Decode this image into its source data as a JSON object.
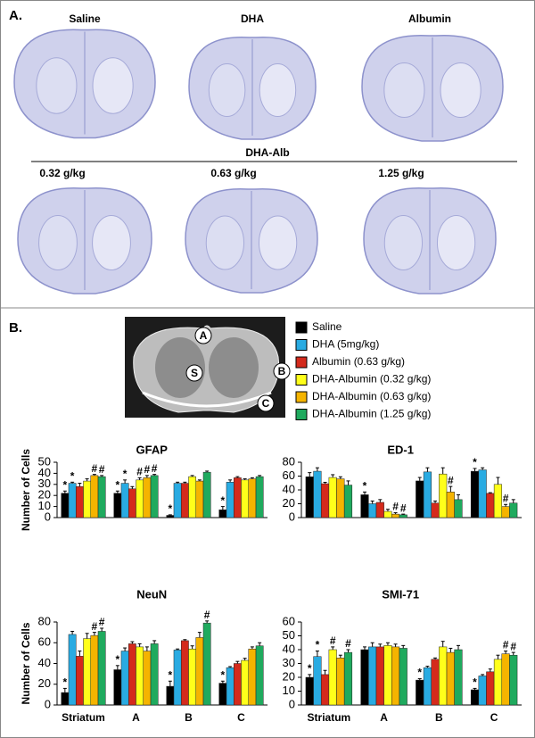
{
  "panel_a": {
    "label": "A.",
    "columns": [
      "Saline",
      "DHA",
      "Albumin"
    ],
    "group_label": "DHA-Alb",
    "doses": [
      "0.32 g/kg",
      "0.63 g/kg",
      "1.25 g/kg"
    ]
  },
  "panel_b": {
    "label": "B.",
    "inset_labels": [
      "A",
      "S",
      "B",
      "C"
    ],
    "legend": [
      {
        "name": "Saline",
        "color": "#000000"
      },
      {
        "name": "DHA (5mg/kg)",
        "color": "#29abe2"
      },
      {
        "name": "Albumin (0.63 g/kg)",
        "color": "#d42a1c"
      },
      {
        "name": "DHA-Albumin (0.32 g/kg)",
        "color": "#ffff1a"
      },
      {
        "name": "DHA-Albumin (0.63 g/kg)",
        "color": "#f5b400"
      },
      {
        "name": "DHA-Albumin (1.25 g/kg)",
        "color": "#1faa5e"
      }
    ]
  },
  "chart_data": [
    {
      "type": "bar",
      "title": "GFAP",
      "ylabel": "Number of Cells",
      "categories": [
        null,
        null,
        null,
        null
      ],
      "ylim": [
        0,
        50
      ],
      "yticks": [
        0,
        10,
        20,
        30,
        40,
        50
      ],
      "series": [
        {
          "values": [
            22,
            22,
            2,
            7
          ],
          "errors": [
            2,
            2,
            0.5,
            3
          ],
          "flags": [
            "*",
            "*",
            "*",
            "*"
          ]
        },
        {
          "values": [
            31,
            31,
            31,
            32
          ],
          "errors": [
            1,
            3,
            1,
            2
          ],
          "flags": [
            "*",
            "*",
            null,
            null
          ]
        },
        {
          "values": [
            28,
            26,
            31,
            36
          ],
          "errors": [
            3,
            2,
            1,
            1
          ],
          "flags": [
            null,
            null,
            null,
            null
          ]
        },
        {
          "values": [
            33,
            34,
            37,
            34
          ],
          "errors": [
            2,
            2,
            1,
            1
          ],
          "flags": [
            null,
            "#",
            null,
            null
          ]
        },
        {
          "values": [
            38,
            36,
            33,
            35
          ],
          "errors": [
            1,
            2,
            1,
            1
          ],
          "flags": [
            "#",
            "#",
            null,
            null
          ]
        },
        {
          "values": [
            37,
            38,
            41,
            37
          ],
          "errors": [
            1,
            1,
            1,
            1
          ],
          "flags": [
            "#",
            "#",
            null,
            null
          ]
        }
      ]
    },
    {
      "type": "bar",
      "title": "ED-1",
      "categories": [
        null,
        null,
        null,
        null
      ],
      "ylim": [
        0,
        80
      ],
      "yticks": [
        0,
        20,
        40,
        60,
        80
      ],
      "series": [
        {
          "values": [
            59,
            33,
            53,
            67
          ],
          "errors": [
            6,
            4,
            5,
            4
          ],
          "flags": [
            null,
            "*",
            null,
            "*"
          ]
        },
        {
          "values": [
            67,
            20,
            66,
            69
          ],
          "errors": [
            5,
            4,
            6,
            3
          ],
          "flags": [
            null,
            null,
            null,
            null
          ]
        },
        {
          "values": [
            49,
            22,
            21,
            35
          ],
          "errors": [
            2,
            4,
            3,
            1
          ],
          "flags": [
            null,
            null,
            null,
            null
          ]
        },
        {
          "values": [
            58,
            9,
            63,
            48
          ],
          "errors": [
            4,
            3,
            9,
            10
          ],
          "flags": [
            null,
            null,
            null,
            null
          ]
        },
        {
          "values": [
            56,
            5,
            37,
            16
          ],
          "errors": [
            3,
            2,
            8,
            3
          ],
          "flags": [
            null,
            "#",
            "#",
            "#"
          ]
        },
        {
          "values": [
            47,
            4,
            26,
            21
          ],
          "errors": [
            6,
            1,
            7,
            5
          ],
          "flags": [
            null,
            "#",
            null,
            null
          ]
        }
      ]
    },
    {
      "type": "bar",
      "title": "NeuN",
      "ylabel": "Number of Cells",
      "categories": [
        "Striatum",
        "A",
        "B",
        "C"
      ],
      "ylim": [
        0,
        80
      ],
      "yticks": [
        0,
        20,
        40,
        60,
        80
      ],
      "series": [
        {
          "values": [
            12,
            34,
            18,
            21
          ],
          "errors": [
            4,
            4,
            5,
            2
          ],
          "flags": [
            "*",
            "*",
            "*",
            "*"
          ]
        },
        {
          "values": [
            68,
            52,
            53,
            36
          ],
          "errors": [
            3,
            3,
            1,
            1
          ],
          "flags": [
            null,
            null,
            null,
            null
          ]
        },
        {
          "values": [
            47,
            59,
            62,
            40
          ],
          "errors": [
            5,
            2,
            1,
            2
          ],
          "flags": [
            null,
            null,
            null,
            null
          ]
        },
        {
          "values": [
            64,
            56,
            54,
            43
          ],
          "errors": [
            5,
            3,
            3,
            2
          ],
          "flags": [
            null,
            null,
            null,
            null
          ]
        },
        {
          "values": [
            67,
            52,
            65,
            54
          ],
          "errors": [
            3,
            4,
            5,
            2
          ],
          "flags": [
            "#",
            null,
            null,
            null
          ]
        },
        {
          "values": [
            71,
            59,
            79,
            57
          ],
          "errors": [
            3,
            3,
            2,
            3
          ],
          "flags": [
            "#",
            null,
            "#",
            null
          ]
        }
      ]
    },
    {
      "type": "bar",
      "title": "SMI-71",
      "categories": [
        "Striatum",
        "A",
        "B",
        "C"
      ],
      "ylim": [
        0,
        60
      ],
      "yticks": [
        0,
        10,
        20,
        30,
        40,
        50,
        60
      ],
      "series": [
        {
          "values": [
            20,
            40,
            18,
            11
          ],
          "errors": [
            2,
            2,
            1,
            1
          ],
          "flags": [
            "*",
            null,
            "*",
            "*"
          ]
        },
        {
          "values": [
            35,
            42,
            27,
            21
          ],
          "errors": [
            4,
            3,
            1,
            1
          ],
          "flags": [
            "*",
            null,
            null,
            null
          ]
        },
        {
          "values": [
            22,
            42,
            33,
            24
          ],
          "errors": [
            3,
            2,
            1,
            2
          ],
          "flags": [
            null,
            null,
            null,
            null
          ]
        },
        {
          "values": [
            40,
            43,
            42,
            33
          ],
          "errors": [
            2,
            2,
            4,
            3
          ],
          "flags": [
            "#",
            null,
            null,
            null
          ]
        },
        {
          "values": [
            34,
            42,
            38,
            37
          ],
          "errors": [
            2,
            2,
            3,
            2
          ],
          "flags": [
            null,
            null,
            null,
            "#"
          ]
        },
        {
          "values": [
            38,
            41,
            40,
            36
          ],
          "errors": [
            2,
            2,
            3,
            2
          ],
          "flags": [
            "#",
            null,
            null,
            "#"
          ]
        }
      ]
    }
  ]
}
